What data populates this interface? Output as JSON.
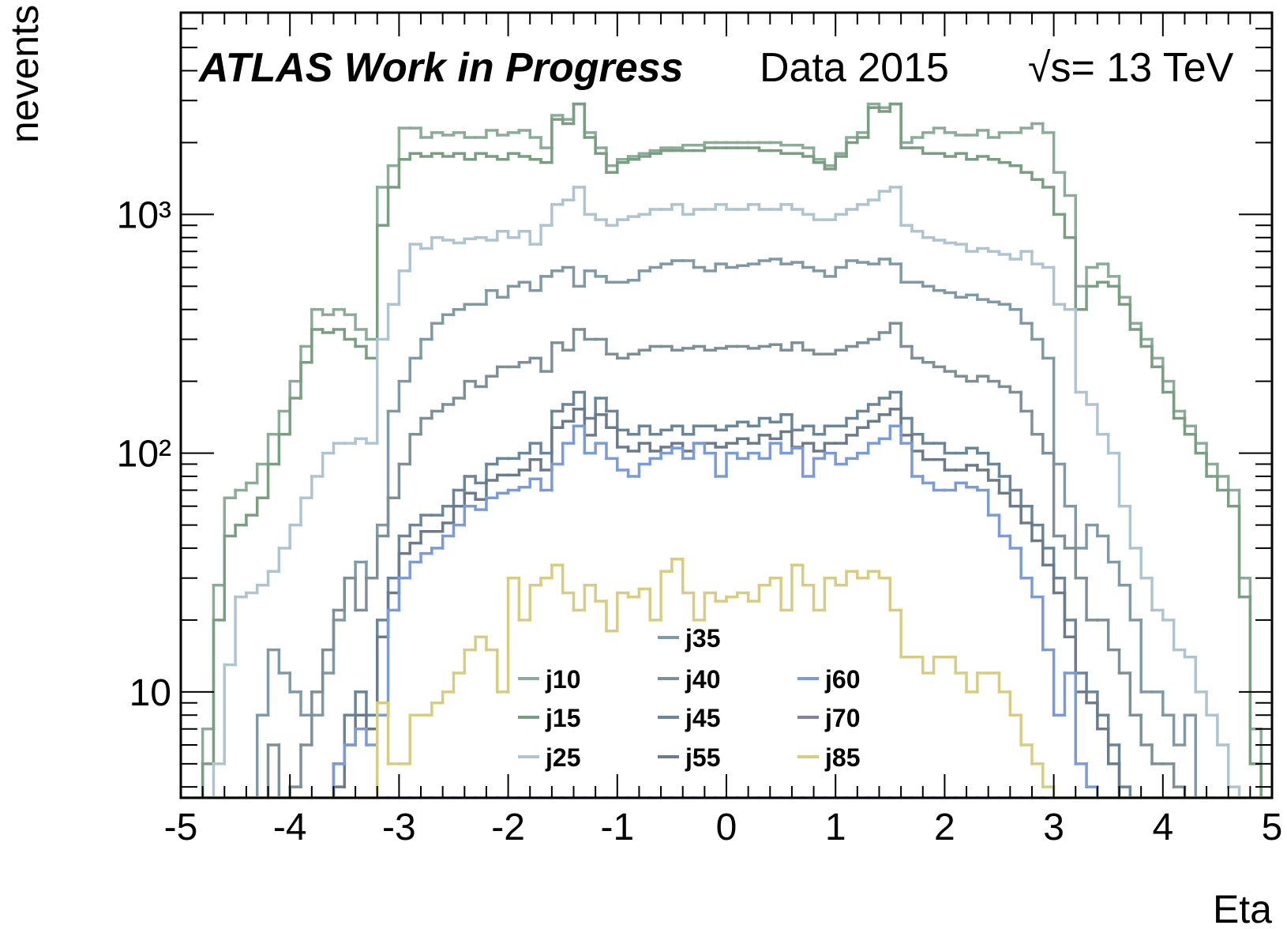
{
  "chart_data": {
    "type": "histogram",
    "title": "ATLAS Work in Progress",
    "subtitle": "Data 2015",
    "annotation": "√s= 13 TeV",
    "x_label": "Eta",
    "y_label": "nevents",
    "log_y": true,
    "xlim": [
      -5,
      5
    ],
    "ylim": [
      3.6,
      7000
    ],
    "xticks": [
      -5,
      -4,
      -3,
      -2,
      -1,
      0,
      1,
      2,
      3,
      4,
      5
    ],
    "xminor_ticks": [
      -4.8,
      -4.6,
      -4.4,
      -4.2,
      -3.8,
      -3.6,
      -3.4,
      -3.2,
      -2.8,
      -2.6,
      -2.4,
      -2.2,
      -1.8,
      -1.6,
      -1.4,
      -1.2,
      -0.8,
      -0.6,
      -0.4,
      -0.2,
      0.2,
      0.4,
      0.6,
      0.8,
      1.2,
      1.4,
      1.6,
      1.8,
      2.2,
      2.4,
      2.6,
      2.8,
      3.2,
      3.4,
      3.6,
      3.8,
      4.2,
      4.4,
      4.6,
      4.8
    ],
    "yticks": [
      10,
      {
        "value": 100,
        "label": "10²"
      },
      {
        "value": 1000,
        "label": "10³"
      }
    ],
    "yminor_ticks": [
      4,
      5,
      6,
      7,
      8,
      9,
      20,
      30,
      40,
      50,
      60,
      70,
      80,
      90,
      200,
      300,
      400,
      500,
      600,
      700,
      800,
      900,
      2000,
      3000,
      4000,
      5000,
      6000,
      7000
    ],
    "bins": [
      -5,
      -4.9,
      -4.8,
      -4.7,
      -4.6,
      -4.5,
      -4.4,
      -4.3,
      -4.2,
      -4.1,
      -4,
      -3.9,
      -3.8,
      -3.7,
      -3.6,
      -3.5,
      -3.4,
      -3.3,
      -3.2,
      -3.1,
      -3,
      -2.9,
      -2.8,
      -2.7,
      -2.6,
      -2.5,
      -2.4,
      -2.3,
      -2.2,
      -2.1,
      -2,
      -1.9,
      -1.8,
      -1.7,
      -1.6,
      -1.5,
      -1.4,
      -1.3,
      -1.2,
      -1.1,
      -1,
      -0.9,
      -0.8,
      -0.7,
      -0.6,
      -0.5,
      -0.4,
      -0.3,
      -0.2,
      -0.1,
      0,
      0.1,
      0.2,
      0.3,
      0.4,
      0.5,
      0.6,
      0.7,
      0.8,
      0.9,
      1,
      1.1,
      1.2,
      1.3,
      1.4,
      1.5,
      1.6,
      1.7,
      1.8,
      1.9,
      2,
      2.1,
      2.2,
      2.3,
      2.4,
      2.5,
      2.6,
      2.7,
      2.8,
      2.9,
      3,
      3.1,
      3.2,
      3.3,
      3.4,
      3.5,
      3.6,
      3.7,
      3.8,
      3.9,
      4,
      4.1,
      4.2,
      4.3,
      4.4,
      4.5,
      4.6,
      4.7,
      4.8,
      4.9,
      5
    ],
    "series": [
      {
        "name": "j10",
        "color": "#8cac9a",
        "values": [
          0,
          0,
          7,
          28,
          65,
          70,
          75,
          90,
          120,
          150,
          200,
          280,
          400,
          380,
          400,
          380,
          330,
          300,
          1300,
          1600,
          2300,
          2300,
          2100,
          2200,
          2150,
          2200,
          2100,
          2100,
          2250,
          2150,
          2200,
          2250,
          2100,
          1900,
          2600,
          2500,
          2900,
          2200,
          1900,
          1600,
          1700,
          1750,
          1800,
          1850,
          1900,
          1900,
          1950,
          1950,
          2000,
          2000,
          2000,
          2000,
          2000,
          2000,
          2000,
          1950,
          1950,
          1900,
          1700,
          1600,
          1800,
          2100,
          2200,
          2900,
          2800,
          2900,
          2000,
          2100,
          2200,
          2300,
          2200,
          2150,
          2150,
          2250,
          2100,
          2200,
          2200,
          2300,
          2400,
          2200,
          1500,
          1200,
          500,
          600,
          620,
          550,
          450,
          350,
          300,
          250,
          200,
          150,
          130,
          110,
          90,
          80,
          70,
          30,
          7,
          0
        ]
      },
      {
        "name": "j15",
        "color": "#7a9e82",
        "values": [
          0,
          0,
          5,
          20,
          45,
          50,
          55,
          65,
          90,
          120,
          170,
          240,
          330,
          320,
          330,
          300,
          280,
          250,
          900,
          1300,
          1700,
          1800,
          1750,
          1800,
          1750,
          1800,
          1700,
          1800,
          1750,
          1700,
          1800,
          1750,
          1700,
          1650,
          2500,
          2400,
          2900,
          2100,
          1800,
          1500,
          1650,
          1700,
          1750,
          1800,
          1850,
          1850,
          1850,
          1850,
          1900,
          1900,
          1900,
          1900,
          1900,
          1850,
          1850,
          1800,
          1800,
          1750,
          1650,
          1550,
          1750,
          2000,
          2100,
          2800,
          2700,
          2900,
          1900,
          1900,
          1800,
          1800,
          1750,
          1800,
          1700,
          1750,
          1700,
          1650,
          1600,
          1500,
          1400,
          1300,
          1000,
          800,
          400,
          500,
          520,
          500,
          420,
          330,
          280,
          230,
          180,
          140,
          120,
          100,
          80,
          70,
          60,
          25,
          5,
          0
        ]
      },
      {
        "name": "j25",
        "color": "#aec4d0",
        "values": [
          0,
          0,
          0,
          5,
          13,
          25,
          26,
          28,
          32,
          40,
          50,
          65,
          80,
          100,
          110,
          110,
          115,
          110,
          300,
          420,
          580,
          750,
          720,
          800,
          780,
          760,
          790,
          800,
          780,
          850,
          800,
          850,
          750,
          900,
          1100,
          1150,
          1300,
          1000,
          950,
          900,
          950,
          980,
          1000,
          1050,
          1050,
          1100,
          1000,
          1050,
          1050,
          1100,
          1050,
          1050,
          1100,
          1050,
          1050,
          1100,
          1050,
          1000,
          950,
          950,
          1000,
          1050,
          1100,
          1150,
          1250,
          1300,
          900,
          850,
          800,
          780,
          760,
          750,
          700,
          720,
          700,
          680,
          650,
          700,
          620,
          600,
          420,
          400,
          180,
          160,
          120,
          100,
          60,
          40,
          30,
          22,
          20,
          15,
          14,
          10,
          8,
          6,
          4,
          0,
          0,
          0
        ]
      },
      {
        "name": "j35",
        "color": "#7f9aa6",
        "values": [
          0,
          0,
          0,
          0,
          0,
          0,
          0,
          8,
          15,
          12,
          10,
          8,
          8,
          12,
          20,
          30,
          35,
          30,
          50,
          150,
          200,
          250,
          300,
          350,
          380,
          400,
          420,
          420,
          480,
          450,
          500,
          520,
          480,
          550,
          580,
          600,
          500,
          580,
          550,
          520,
          520,
          530,
          580,
          600,
          620,
          640,
          640,
          600,
          580,
          620,
          600,
          610,
          620,
          640,
          650,
          620,
          630,
          600,
          580,
          550,
          600,
          640,
          630,
          620,
          650,
          620,
          520,
          520,
          500,
          480,
          470,
          450,
          460,
          440,
          430,
          420,
          400,
          350,
          300,
          250,
          90,
          60,
          40,
          50,
          45,
          35,
          28,
          20,
          10,
          10,
          8,
          6,
          8,
          0,
          0,
          0,
          0,
          0,
          0,
          0
        ]
      },
      {
        "name": "j40",
        "color": "#7d9098",
        "values": [
          0,
          0,
          0,
          0,
          0,
          0,
          0,
          0,
          6,
          0,
          4,
          6,
          10,
          15,
          22,
          30,
          22,
          30,
          45,
          65,
          90,
          120,
          140,
          150,
          160,
          170,
          200,
          190,
          210,
          230,
          230,
          240,
          250,
          220,
          290,
          270,
          330,
          300,
          300,
          260,
          250,
          260,
          270,
          280,
          280,
          270,
          275,
          280,
          270,
          275,
          280,
          280,
          275,
          280,
          285,
          270,
          290,
          270,
          260,
          260,
          270,
          280,
          290,
          300,
          320,
          350,
          280,
          250,
          240,
          230,
          220,
          210,
          200,
          210,
          200,
          190,
          180,
          150,
          120,
          100,
          45,
          40,
          30,
          20,
          20,
          15,
          12,
          8,
          6,
          5,
          5,
          4,
          0,
          0,
          0,
          0,
          0,
          0,
          0,
          0
        ]
      },
      {
        "name": "j45",
        "color": "#6a869a",
        "values": [
          0,
          0,
          0,
          0,
          0,
          0,
          0,
          0,
          0,
          0,
          0,
          0,
          0,
          0,
          5,
          8,
          10,
          8,
          20,
          30,
          45,
          50,
          55,
          55,
          60,
          70,
          80,
          75,
          90,
          95,
          95,
          100,
          110,
          100,
          150,
          160,
          180,
          140,
          170,
          150,
          125,
          120,
          130,
          120,
          125,
          130,
          120,
          130,
          130,
          125,
          130,
          135,
          130,
          140,
          135,
          145,
          125,
          130,
          120,
          130,
          130,
          140,
          150,
          160,
          170,
          180,
          140,
          120,
          110,
          110,
          100,
          100,
          105,
          100,
          90,
          80,
          70,
          60,
          50,
          40,
          30,
          20,
          12,
          10,
          8,
          6,
          4,
          0,
          0,
          0,
          0,
          0,
          0,
          0,
          0,
          0,
          0,
          0,
          0,
          0
        ]
      },
      {
        "name": "j55",
        "color": "#6b7b8c",
        "values": [
          0,
          0,
          0,
          0,
          0,
          0,
          0,
          0,
          0,
          0,
          0,
          0,
          0,
          0,
          4,
          6,
          8,
          7,
          17,
          26,
          38,
          42,
          47,
          47,
          51,
          60,
          68,
          64,
          77,
          81,
          81,
          85,
          94,
          85,
          128,
          136,
          153,
          119,
          145,
          128,
          106,
          102,
          110,
          102,
          106,
          110,
          102,
          110,
          110,
          106,
          110,
          115,
          110,
          119,
          115,
          123,
          106,
          110,
          102,
          110,
          110,
          119,
          128,
          136,
          145,
          153,
          119,
          102,
          94,
          94,
          85,
          85,
          89,
          85,
          77,
          68,
          60,
          51,
          43,
          34,
          26,
          17,
          10,
          9,
          7,
          5,
          3,
          0,
          0,
          0,
          0,
          0,
          0,
          0,
          0,
          0,
          0,
          0,
          0,
          0
        ]
      },
      {
        "name": "j60",
        "color": "#7b9bd8",
        "values": [
          0,
          0,
          0,
          0,
          0,
          0,
          0,
          0,
          0,
          0,
          0,
          0,
          0,
          0,
          5,
          6,
          7,
          6,
          8,
          22,
          30,
          35,
          38,
          40,
          45,
          50,
          60,
          58,
          65,
          68,
          70,
          72,
          78,
          70,
          90,
          110,
          130,
          100,
          110,
          95,
          85,
          80,
          90,
          95,
          100,
          105,
          95,
          110,
          100,
          80,
          100,
          95,
          100,
          95,
          110,
          100,
          105,
          80,
          95,
          100,
          90,
          95,
          100,
          110,
          115,
          130,
          110,
          80,
          75,
          70,
          70,
          75,
          72,
          70,
          55,
          45,
          40,
          30,
          25,
          15,
          8,
          12,
          5,
          4,
          0,
          0,
          0,
          0,
          0,
          0,
          0,
          0,
          0,
          0,
          0,
          0,
          0,
          0,
          0,
          0
        ]
      },
      {
        "name": "j70",
        "color": "#8080a2",
        "values": [
          0,
          0,
          0,
          0,
          0,
          0,
          0,
          0,
          0,
          0,
          0,
          0,
          0,
          0,
          0,
          0,
          0,
          0,
          0,
          0,
          0,
          0,
          0,
          0,
          0,
          0,
          0,
          0,
          0,
          0,
          0,
          0,
          0,
          0,
          0,
          0,
          0,
          0,
          0,
          0,
          0,
          0,
          0,
          0,
          0,
          0,
          0,
          0,
          0,
          0,
          0,
          0,
          0,
          0,
          0,
          0,
          0,
          0,
          0,
          0,
          0,
          0,
          0,
          0,
          0,
          0,
          0,
          0,
          0,
          0,
          0,
          0,
          0,
          0,
          0,
          0,
          0,
          0,
          0,
          0,
          0,
          0,
          0,
          0,
          0,
          0,
          0,
          0,
          0,
          0,
          0,
          0,
          0,
          0,
          0,
          0,
          0,
          0,
          0,
          0
        ]
      },
      {
        "name": "j85",
        "color": "#d8cc82",
        "values": [
          0,
          0,
          0,
          0,
          0,
          0,
          0,
          0,
          0,
          0,
          0,
          0,
          0,
          0,
          0,
          0,
          0,
          0,
          9,
          5,
          5,
          8,
          8,
          9,
          10,
          12,
          15,
          17,
          15,
          10,
          30,
          20,
          28,
          30,
          34,
          26,
          22,
          28,
          24,
          18,
          26,
          25,
          27,
          20,
          32,
          36,
          26,
          20,
          26,
          24,
          25,
          26,
          24,
          28,
          30,
          22,
          34,
          28,
          22,
          30,
          28,
          32,
          30,
          32,
          30,
          22,
          14,
          14,
          12,
          14,
          14,
          12,
          10,
          12,
          12,
          10,
          8,
          6,
          5,
          4,
          0,
          0,
          0,
          0,
          0,
          0,
          0,
          0,
          0,
          0,
          0,
          0,
          0,
          0,
          0,
          0,
          0,
          0,
          0,
          0
        ]
      }
    ]
  }
}
